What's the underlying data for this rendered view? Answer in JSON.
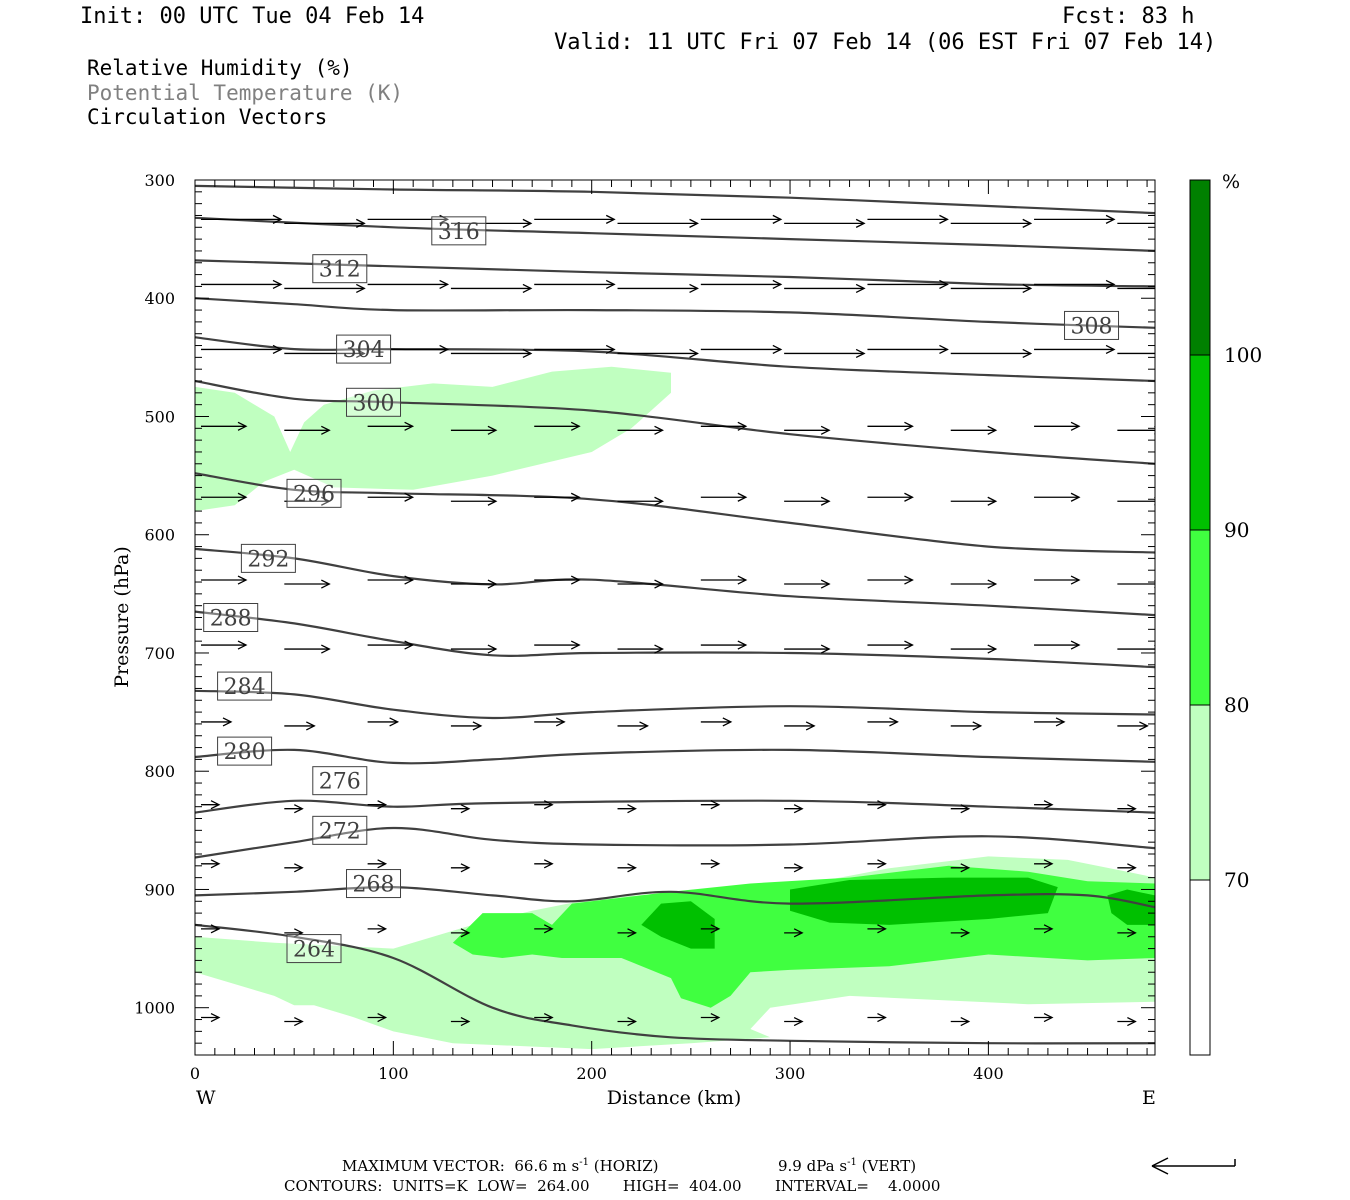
{
  "header": {
    "init": "Init: 00 UTC Tue 04 Feb 14",
    "fcst": "Fcst:   83 h",
    "valid": "Valid: 11 UTC Fri 07 Feb 14 (06 EST Fri 07 Feb 14)"
  },
  "legend_lines": [
    {
      "text": "Relative Humidity (%)",
      "color": "#000000"
    },
    {
      "text": "Potential Temperature (K)",
      "color": "#808080"
    },
    {
      "text": "Circulation Vectors",
      "color": "#000000"
    }
  ],
  "footer": {
    "max_vector_prefix": "MAXIMUM VECTOR:",
    "horiz_value": "66.6 m s",
    "horiz_exp": "-1",
    "horiz_label": "(HORIZ)",
    "vert_value": "9.9 dPa s",
    "vert_exp": "-1",
    "vert_label": "(VERT)",
    "contours": "CONTOURS:  UNITS=K  LOW=  264.00       HIGH=  404.00       INTERVAL=    4.0000"
  },
  "colors": {
    "rh70": "#c0ffc0",
    "rh80": "#40ff40",
    "rh90": "#00c000",
    "rh100": "#008000",
    "theta_line": "#404040"
  },
  "chart_data": {
    "type": "cross-section",
    "xlabel": "Distance (km)",
    "ylabel": "Pressure (hPa)",
    "xlim": [
      0,
      484
    ],
    "ylim": [
      1040,
      300
    ],
    "x_ticks": [
      0,
      100,
      200,
      300,
      400
    ],
    "y_ticks": [
      300,
      400,
      500,
      600,
      700,
      800,
      900,
      1000
    ],
    "x_end_labels": {
      "left": "W",
      "right": "E"
    },
    "colorbar": {
      "unit": "%",
      "levels": [
        70,
        80,
        90,
        100
      ],
      "colors": [
        "#ffffff",
        "#c0ffc0",
        "#40ff40",
        "#00c000",
        "#008000"
      ]
    },
    "theta_contours": [
      {
        "value": 264,
        "label": "264",
        "label_at": [
          60,
          950
        ],
        "pts": [
          [
            0,
            930
          ],
          [
            50,
            940
          ],
          [
            100,
            958
          ],
          [
            150,
            1000
          ],
          [
            190,
            1015
          ],
          [
            240,
            1025
          ],
          [
            300,
            1028
          ],
          [
            400,
            1030
          ],
          [
            484,
            1030
          ]
        ]
      },
      {
        "value": 268,
        "label": "268",
        "label_at": [
          90,
          895
        ],
        "pts": [
          [
            0,
            905
          ],
          [
            50,
            902
          ],
          [
            100,
            898
          ],
          [
            150,
            905
          ],
          [
            190,
            910
          ],
          [
            240,
            902
          ],
          [
            300,
            912
          ],
          [
            400,
            905
          ],
          [
            450,
            905
          ],
          [
            484,
            915
          ]
        ]
      },
      {
        "value": 272,
        "label": "272",
        "label_at": [
          73,
          850
        ],
        "pts": [
          [
            0,
            873
          ],
          [
            50,
            860
          ],
          [
            100,
            848
          ],
          [
            150,
            858
          ],
          [
            200,
            862
          ],
          [
            300,
            862
          ],
          [
            400,
            855
          ],
          [
            484,
            865
          ]
        ]
      },
      {
        "value": 276,
        "label": "276",
        "label_at": [
          73,
          808
        ],
        "pts": [
          [
            0,
            835
          ],
          [
            50,
            825
          ],
          [
            100,
            830
          ],
          [
            150,
            827
          ],
          [
            300,
            825
          ],
          [
            400,
            830
          ],
          [
            484,
            835
          ]
        ]
      },
      {
        "value": 280,
        "label": "280",
        "label_at": [
          25,
          783
        ],
        "pts": [
          [
            0,
            788
          ],
          [
            50,
            782
          ],
          [
            100,
            793
          ],
          [
            150,
            790
          ],
          [
            200,
            785
          ],
          [
            300,
            782
          ],
          [
            400,
            788
          ],
          [
            484,
            792
          ]
        ]
      },
      {
        "value": 284,
        "label": "284",
        "label_at": [
          25,
          728
        ],
        "pts": [
          [
            0,
            732
          ],
          [
            50,
            735
          ],
          [
            100,
            748
          ],
          [
            150,
            755
          ],
          [
            200,
            750
          ],
          [
            300,
            745
          ],
          [
            400,
            750
          ],
          [
            484,
            752
          ]
        ]
      },
      {
        "value": 288,
        "label": "288",
        "label_at": [
          18,
          670
        ],
        "pts": [
          [
            0,
            665
          ],
          [
            50,
            675
          ],
          [
            100,
            690
          ],
          [
            150,
            702
          ],
          [
            200,
            700
          ],
          [
            300,
            700
          ],
          [
            400,
            705
          ],
          [
            484,
            712
          ]
        ]
      },
      {
        "value": 292,
        "label": "292",
        "label_at": [
          37,
          620
        ],
        "pts": [
          [
            0,
            612
          ],
          [
            50,
            620
          ],
          [
            100,
            635
          ],
          [
            150,
            642
          ],
          [
            200,
            638
          ],
          [
            300,
            652
          ],
          [
            400,
            660
          ],
          [
            484,
            668
          ]
        ]
      },
      {
        "value": 296,
        "label": "296",
        "label_at": [
          60,
          565
        ],
        "pts": [
          [
            0,
            548
          ],
          [
            50,
            562
          ],
          [
            100,
            565
          ],
          [
            200,
            570
          ],
          [
            300,
            590
          ],
          [
            400,
            610
          ],
          [
            484,
            615
          ]
        ]
      },
      {
        "value": 300,
        "label": "300",
        "label_at": [
          90,
          488
        ],
        "pts": [
          [
            0,
            470
          ],
          [
            50,
            485
          ],
          [
            100,
            488
          ],
          [
            200,
            495
          ],
          [
            300,
            515
          ],
          [
            400,
            530
          ],
          [
            484,
            540
          ]
        ]
      },
      {
        "value": 304,
        "label": "304",
        "label_at": [
          85,
          443
        ],
        "pts": [
          [
            0,
            433
          ],
          [
            50,
            443
          ],
          [
            100,
            443
          ],
          [
            200,
            445
          ],
          [
            300,
            458
          ],
          [
            400,
            465
          ],
          [
            484,
            470
          ]
        ]
      },
      {
        "value": 308,
        "label": "308",
        "label_at": [
          452,
          423
        ],
        "pts": [
          [
            0,
            400
          ],
          [
            50,
            405
          ],
          [
            100,
            410
          ],
          [
            200,
            410
          ],
          [
            300,
            412
          ],
          [
            400,
            420
          ],
          [
            484,
            425
          ]
        ]
      },
      {
        "value": 312,
        "label": "312",
        "label_at": [
          73,
          375
        ],
        "pts": [
          [
            0,
            368
          ],
          [
            100,
            373
          ],
          [
            200,
            378
          ],
          [
            300,
            382
          ],
          [
            400,
            388
          ],
          [
            484,
            390
          ]
        ]
      },
      {
        "value": 316,
        "label": "316",
        "label_at": [
          133,
          343
        ],
        "pts": [
          [
            0,
            332
          ],
          [
            100,
            340
          ],
          [
            200,
            345
          ],
          [
            300,
            350
          ],
          [
            400,
            355
          ],
          [
            484,
            360
          ]
        ]
      },
      {
        "value": 320,
        "label": "",
        "label_at": null,
        "pts": [
          [
            0,
            305
          ],
          [
            100,
            308
          ],
          [
            200,
            310
          ],
          [
            300,
            315
          ],
          [
            400,
            322
          ],
          [
            484,
            328
          ]
        ]
      }
    ],
    "rh_regions": [
      {
        "level": 70,
        "pts": [
          [
            0,
            475
          ],
          [
            20,
            480
          ],
          [
            40,
            500
          ],
          [
            48,
            530
          ],
          [
            55,
            505
          ],
          [
            65,
            490
          ],
          [
            90,
            478
          ],
          [
            120,
            472
          ],
          [
            150,
            475
          ],
          [
            180,
            462
          ],
          [
            210,
            458
          ],
          [
            240,
            463
          ],
          [
            240,
            480
          ],
          [
            220,
            510
          ],
          [
            200,
            530
          ],
          [
            150,
            550
          ],
          [
            110,
            562
          ],
          [
            70,
            560
          ],
          [
            50,
            545
          ],
          [
            35,
            555
          ],
          [
            20,
            575
          ],
          [
            0,
            580
          ]
        ]
      },
      {
        "level": 70,
        "pts": [
          [
            0,
            940
          ],
          [
            40,
            945
          ],
          [
            100,
            950
          ],
          [
            140,
            930
          ],
          [
            170,
            918
          ],
          [
            200,
            908
          ],
          [
            260,
            900
          ],
          [
            300,
            898
          ],
          [
            350,
            882
          ],
          [
            400,
            872
          ],
          [
            440,
            875
          ],
          [
            470,
            885
          ],
          [
            484,
            890
          ],
          [
            484,
            995
          ],
          [
            420,
            997
          ],
          [
            330,
            990
          ],
          [
            290,
            1000
          ],
          [
            280,
            1018
          ],
          [
            290,
            1025
          ],
          [
            250,
            1030
          ],
          [
            200,
            1035
          ],
          [
            130,
            1030
          ],
          [
            100,
            1020
          ],
          [
            80,
            1008
          ],
          [
            60,
            998
          ],
          [
            50,
            998
          ],
          [
            40,
            990
          ],
          [
            0,
            970
          ]
        ]
      },
      {
        "level": 80,
        "pts": [
          [
            130,
            945
          ],
          [
            145,
            920
          ],
          [
            170,
            920
          ],
          [
            180,
            930
          ],
          [
            190,
            912
          ],
          [
            210,
            908
          ],
          [
            240,
            902
          ],
          [
            280,
            895
          ],
          [
            330,
            890
          ],
          [
            380,
            880
          ],
          [
            420,
            885
          ],
          [
            450,
            893
          ],
          [
            484,
            895
          ],
          [
            484,
            958
          ],
          [
            450,
            960
          ],
          [
            400,
            955
          ],
          [
            350,
            965
          ],
          [
            300,
            968
          ],
          [
            280,
            970
          ],
          [
            270,
            990
          ],
          [
            260,
            1000
          ],
          [
            245,
            992
          ],
          [
            240,
            975
          ],
          [
            215,
            958
          ],
          [
            200,
            958
          ],
          [
            185,
            958
          ],
          [
            170,
            955
          ],
          [
            155,
            958
          ],
          [
            140,
            955
          ]
        ]
      },
      {
        "level": 90,
        "pts": [
          [
            225,
            930
          ],
          [
            235,
            912
          ],
          [
            250,
            910
          ],
          [
            262,
            925
          ],
          [
            262,
            950
          ],
          [
            250,
            950
          ],
          [
            235,
            940
          ]
        ]
      },
      {
        "level": 90,
        "pts": [
          [
            300,
            900
          ],
          [
            330,
            892
          ],
          [
            380,
            890
          ],
          [
            420,
            890
          ],
          [
            435,
            898
          ],
          [
            430,
            920
          ],
          [
            400,
            925
          ],
          [
            350,
            930
          ],
          [
            320,
            928
          ],
          [
            300,
            918
          ]
        ]
      },
      {
        "level": 90,
        "pts": [
          [
            460,
            905
          ],
          [
            470,
            900
          ],
          [
            484,
            905
          ],
          [
            484,
            930
          ],
          [
            470,
            930
          ],
          [
            462,
            920
          ]
        ]
      }
    ],
    "circulation_vectors": [
      {
        "p": 335,
        "x": [
          0,
          42,
          84,
          126,
          168,
          210,
          252,
          294,
          336,
          378,
          420,
          462
        ]
      },
      {
        "p": 390,
        "x": [
          0,
          42,
          84,
          126,
          168,
          210,
          252,
          294,
          336,
          378,
          420,
          462
        ]
      },
      {
        "p": 445,
        "x": [
          0,
          42,
          84,
          126,
          168,
          210,
          252,
          294,
          336,
          378,
          420,
          462
        ]
      },
      {
        "p": 510,
        "x": [
          0,
          42,
          84,
          126,
          168,
          210,
          252,
          294,
          336,
          378,
          420,
          462
        ]
      },
      {
        "p": 570,
        "x": [
          0,
          42,
          84,
          126,
          168,
          210,
          252,
          294,
          336,
          378,
          420,
          462
        ]
      },
      {
        "p": 640,
        "x": [
          0,
          42,
          84,
          126,
          168,
          210,
          252,
          294,
          336,
          378,
          420,
          462
        ]
      },
      {
        "p": 695,
        "x": [
          0,
          42,
          84,
          126,
          168,
          210,
          252,
          294,
          336,
          378,
          420,
          462
        ]
      },
      {
        "p": 760,
        "x": [
          0,
          42,
          84,
          126,
          168,
          210,
          252,
          294,
          336,
          378,
          420,
          462
        ]
      },
      {
        "p": 830,
        "x": [
          0,
          42,
          84,
          126,
          168,
          210,
          252,
          294,
          336,
          378,
          420,
          462
        ]
      },
      {
        "p": 880,
        "x": [
          0,
          42,
          84,
          126,
          168,
          210,
          252,
          294,
          336,
          378,
          420,
          462
        ]
      },
      {
        "p": 935,
        "x": [
          0,
          42,
          84,
          126,
          168,
          210,
          252,
          294,
          336,
          378,
          420,
          462
        ]
      },
      {
        "p": 1010,
        "x": [
          0,
          42,
          84,
          126,
          168,
          210,
          252,
          294,
          336,
          378,
          420,
          462
        ]
      }
    ]
  }
}
